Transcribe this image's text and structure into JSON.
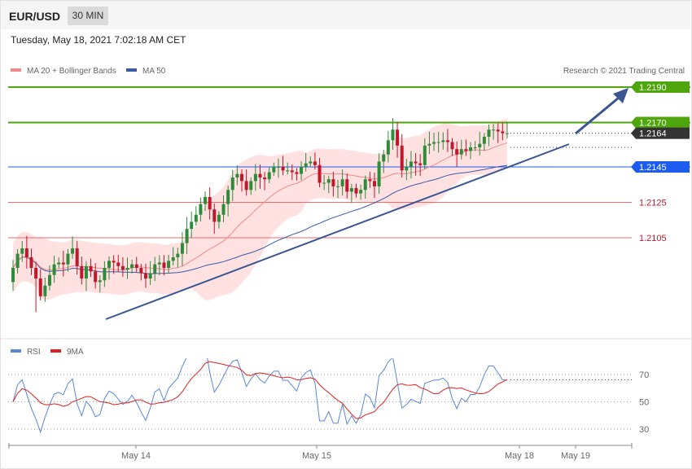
{
  "header": {
    "symbol": "EUR/USD",
    "timeframe": "30 MIN",
    "datetime": "Tuesday, May 18, 2021 7:02:18 AM CET"
  },
  "legend": {
    "ma20_label": "MA 20 + Bollinger Bands",
    "ma50_label": "MA 50",
    "copyright": "Research © 2021 Trading Central",
    "rsi_label": "RSI",
    "ma9_label": "9MA"
  },
  "colors": {
    "ma20": "#f08a8a",
    "ma50": "#3a5aa8",
    "band": "#ffe1e1",
    "up": "#2e8b3a",
    "down": "#c0172b",
    "resistance": "#4ea60c",
    "support_blue": "#1e5cf0",
    "support_red": "#ec6a6a",
    "trend": "#3a5590",
    "rsi": "#5b86d6",
    "ma9": "#e02020",
    "current": "#333333"
  },
  "chart_data": [
    {
      "type": "candlestick",
      "title": "EUR/USD",
      "timeframe": "30 MIN",
      "x_ticks": [
        "May 14",
        "May 15",
        "May 18",
        "May 19"
      ],
      "ylim": [
        1.206,
        1.22
      ],
      "series": [
        {
          "name": "MA 20 + Bollinger Bands"
        },
        {
          "name": "MA 50"
        }
      ],
      "levels": [
        {
          "label": "1.2190",
          "value": 1.219,
          "style": "resistance"
        },
        {
          "label": "1.2170",
          "value": 1.217,
          "style": "resistance"
        },
        {
          "label": "1.2164",
          "value": 1.2164,
          "style": "current"
        },
        {
          "label": "1.2145",
          "value": 1.2145,
          "style": "pivot"
        },
        {
          "label": "1.2125",
          "value": 1.2125,
          "style": "support"
        },
        {
          "label": "1.2105",
          "value": 1.2105,
          "style": "support"
        }
      ],
      "closes": [
        1.2088,
        1.2096,
        1.2099,
        1.2094,
        1.2088,
        1.2082,
        1.2072,
        1.2078,
        1.2084,
        1.209,
        1.2091,
        1.209,
        1.2096,
        1.2099,
        1.2089,
        1.2082,
        1.2089,
        1.2086,
        1.208,
        1.2081,
        1.2088,
        1.2092,
        1.2091,
        1.2089,
        1.2087,
        1.2088,
        1.209,
        1.2088,
        1.2085,
        1.2082,
        1.2085,
        1.209,
        1.2091,
        1.2088,
        1.2092,
        1.2094,
        1.2096,
        1.2102,
        1.211,
        1.2114,
        1.2118,
        1.2124,
        1.2128,
        1.2121,
        1.2114,
        1.2118,
        1.2124,
        1.2132,
        1.2139,
        1.2141,
        1.2137,
        1.2132,
        1.2137,
        1.2141,
        1.2139,
        1.2138,
        1.2142,
        1.2145,
        1.2145,
        1.2143,
        1.2143,
        1.2142,
        1.2141,
        1.2145,
        1.2147,
        1.2148,
        1.2146,
        1.2136,
        1.2136,
        1.2138,
        1.2134,
        1.2134,
        1.2138,
        1.2131,
        1.2133,
        1.213,
        1.2132,
        1.2138,
        1.2137,
        1.2134,
        1.2148,
        1.2152,
        1.216,
        1.2166,
        1.2157,
        1.2143,
        1.2145,
        1.2148,
        1.2147,
        1.2146,
        1.2157,
        1.2158,
        1.2159,
        1.2159,
        1.216,
        1.2159,
        1.2155,
        1.2152,
        1.2155,
        1.2154,
        1.2156,
        1.2156,
        1.2158,
        1.2162,
        1.2166,
        1.2166,
        1.2165,
        1.2164,
        1.2164
      ]
    },
    {
      "type": "line",
      "title": "RSI",
      "ylim": [
        20,
        80
      ],
      "y_ticks": [
        70,
        50,
        30
      ],
      "series": [
        {
          "name": "RSI"
        },
        {
          "name": "9MA"
        }
      ]
    }
  ]
}
